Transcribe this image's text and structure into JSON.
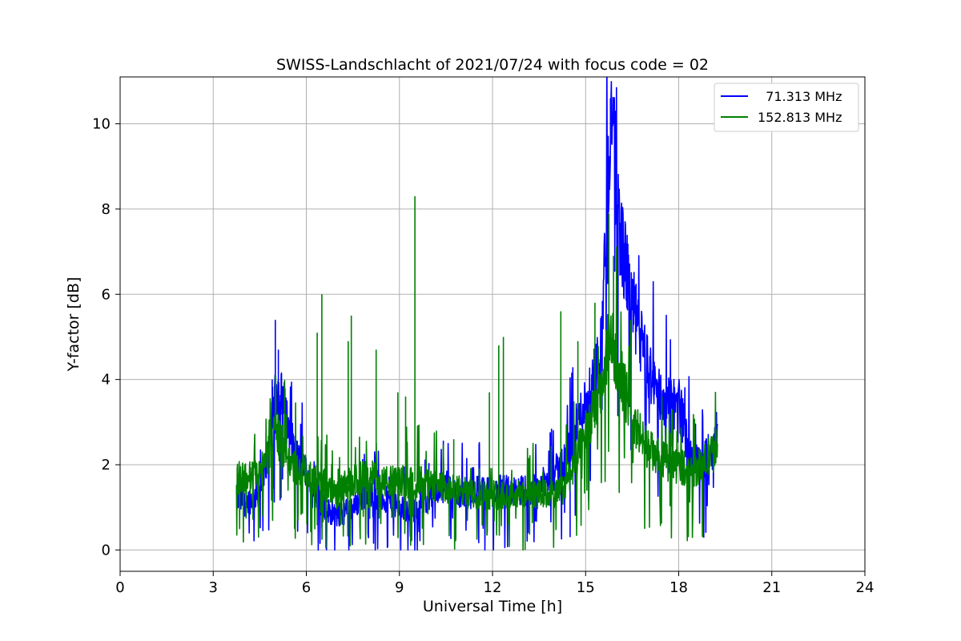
{
  "chart_data": {
    "type": "line",
    "title": "SWISS-Landschlacht of 2021/07/24 with focus code = 02",
    "xlabel": "Universal Time [h]",
    "ylabel": "Y-factor [dB]",
    "xlim": [
      0,
      24
    ],
    "ylim": [
      -0.5,
      11.1
    ],
    "xticks": [
      0,
      3,
      6,
      9,
      12,
      15,
      18,
      21,
      24
    ],
    "yticks": [
      0,
      2,
      4,
      6,
      8,
      10
    ],
    "grid": true,
    "legend_position": "top-right",
    "series": [
      {
        "name": "  71.313 MHz",
        "color": "#0000ff",
        "x": [
          3.75,
          4.0,
          4.25,
          4.5,
          4.75,
          5.0,
          5.25,
          5.5,
          5.75,
          6.0,
          6.25,
          6.5,
          6.75,
          7.0,
          7.25,
          7.5,
          7.75,
          8.0,
          8.25,
          8.5,
          8.75,
          9.0,
          9.25,
          9.5,
          9.75,
          10.0,
          10.25,
          10.5,
          10.75,
          11.0,
          11.25,
          11.5,
          11.75,
          12.0,
          12.25,
          12.5,
          12.75,
          13.0,
          13.25,
          13.5,
          13.75,
          14.0,
          14.25,
          14.5,
          14.75,
          15.0,
          15.25,
          15.5,
          15.75,
          15.85,
          16.0,
          16.25,
          16.5,
          16.75,
          17.0,
          17.25,
          17.5,
          17.75,
          18.0,
          18.25,
          18.5,
          18.75,
          19.0,
          19.25
        ],
        "y": [
          1.2,
          1.1,
          1.2,
          1.4,
          2.2,
          3.8,
          3.5,
          2.6,
          2.1,
          1.8,
          1.2,
          1.1,
          0.9,
          0.8,
          0.9,
          1.0,
          1.2,
          1.4,
          1.3,
          1.2,
          1.1,
          1.0,
          0.9,
          0.9,
          1.1,
          1.3,
          1.4,
          1.5,
          1.4,
          1.3,
          1.3,
          1.4,
          1.4,
          1.3,
          1.4,
          1.4,
          1.4,
          1.4,
          1.4,
          1.5,
          1.6,
          1.8,
          2.0,
          2.4,
          3.0,
          3.5,
          4.0,
          4.8,
          9.2,
          10.5,
          8.2,
          6.8,
          5.8,
          5.0,
          4.3,
          3.8,
          3.5,
          3.4,
          3.5,
          2.6,
          2.1,
          2.0,
          2.3,
          2.5
        ],
        "spikes": [
          [
            5.0,
            5.4
          ],
          [
            5.1,
            4.7
          ],
          [
            4.9,
            4.0
          ],
          [
            14.5,
            0.3
          ],
          [
            15.8,
            10.6
          ],
          [
            15.95,
            9.5
          ],
          [
            16.3,
            7.2
          ],
          [
            16.6,
            5.6
          ]
        ]
      },
      {
        "name": "152.813 MHz",
        "color": "#008000",
        "x": [
          3.75,
          4.0,
          4.25,
          4.5,
          4.75,
          5.0,
          5.25,
          5.5,
          5.75,
          6.0,
          6.25,
          6.5,
          6.75,
          7.0,
          7.25,
          7.5,
          7.75,
          8.0,
          8.25,
          8.5,
          8.75,
          9.0,
          9.25,
          9.5,
          9.75,
          10.0,
          10.25,
          10.5,
          10.75,
          11.0,
          11.25,
          11.5,
          11.75,
          12.0,
          12.25,
          12.5,
          12.75,
          13.0,
          13.25,
          13.5,
          13.75,
          14.0,
          14.25,
          14.5,
          14.75,
          15.0,
          15.25,
          15.5,
          15.75,
          16.0,
          16.25,
          16.5,
          16.75,
          17.0,
          17.25,
          17.5,
          17.75,
          18.0,
          18.25,
          18.5,
          18.75,
          19.0,
          19.25
        ],
        "y": [
          1.7,
          1.7,
          1.7,
          1.8,
          2.2,
          2.8,
          2.4,
          2.0,
          1.9,
          1.8,
          1.7,
          1.6,
          1.4,
          1.3,
          1.5,
          1.6,
          1.7,
          1.7,
          1.7,
          1.6,
          1.6,
          1.6,
          1.6,
          1.6,
          1.6,
          1.5,
          1.5,
          1.4,
          1.4,
          1.4,
          1.3,
          1.3,
          1.3,
          1.3,
          1.3,
          1.3,
          1.3,
          1.3,
          1.3,
          1.3,
          1.3,
          1.3,
          1.4,
          1.8,
          2.2,
          2.8,
          3.2,
          3.6,
          5.0,
          4.5,
          3.8,
          3.0,
          2.7,
          2.4,
          2.2,
          2.1,
          2.0,
          2.0,
          1.9,
          1.9,
          2.0,
          2.2,
          2.4
        ],
        "spikes": [
          [
            5.0,
            4.1
          ],
          [
            6.35,
            5.1
          ],
          [
            6.5,
            6.0
          ],
          [
            7.35,
            4.9
          ],
          [
            7.45,
            5.5
          ],
          [
            8.25,
            4.7
          ],
          [
            8.95,
            3.7
          ],
          [
            9.2,
            3.6
          ],
          [
            9.5,
            8.3
          ],
          [
            10.75,
            2.6
          ],
          [
            11.9,
            3.7
          ],
          [
            12.2,
            4.8
          ],
          [
            12.35,
            5.0
          ],
          [
            13.05,
            0.0
          ],
          [
            14.2,
            5.6
          ],
          [
            14.75,
            4.9
          ],
          [
            15.3,
            5.8
          ],
          [
            15.75,
            7.9
          ],
          [
            15.9,
            6.9
          ],
          [
            16.45,
            5.4
          ]
        ]
      }
    ]
  }
}
